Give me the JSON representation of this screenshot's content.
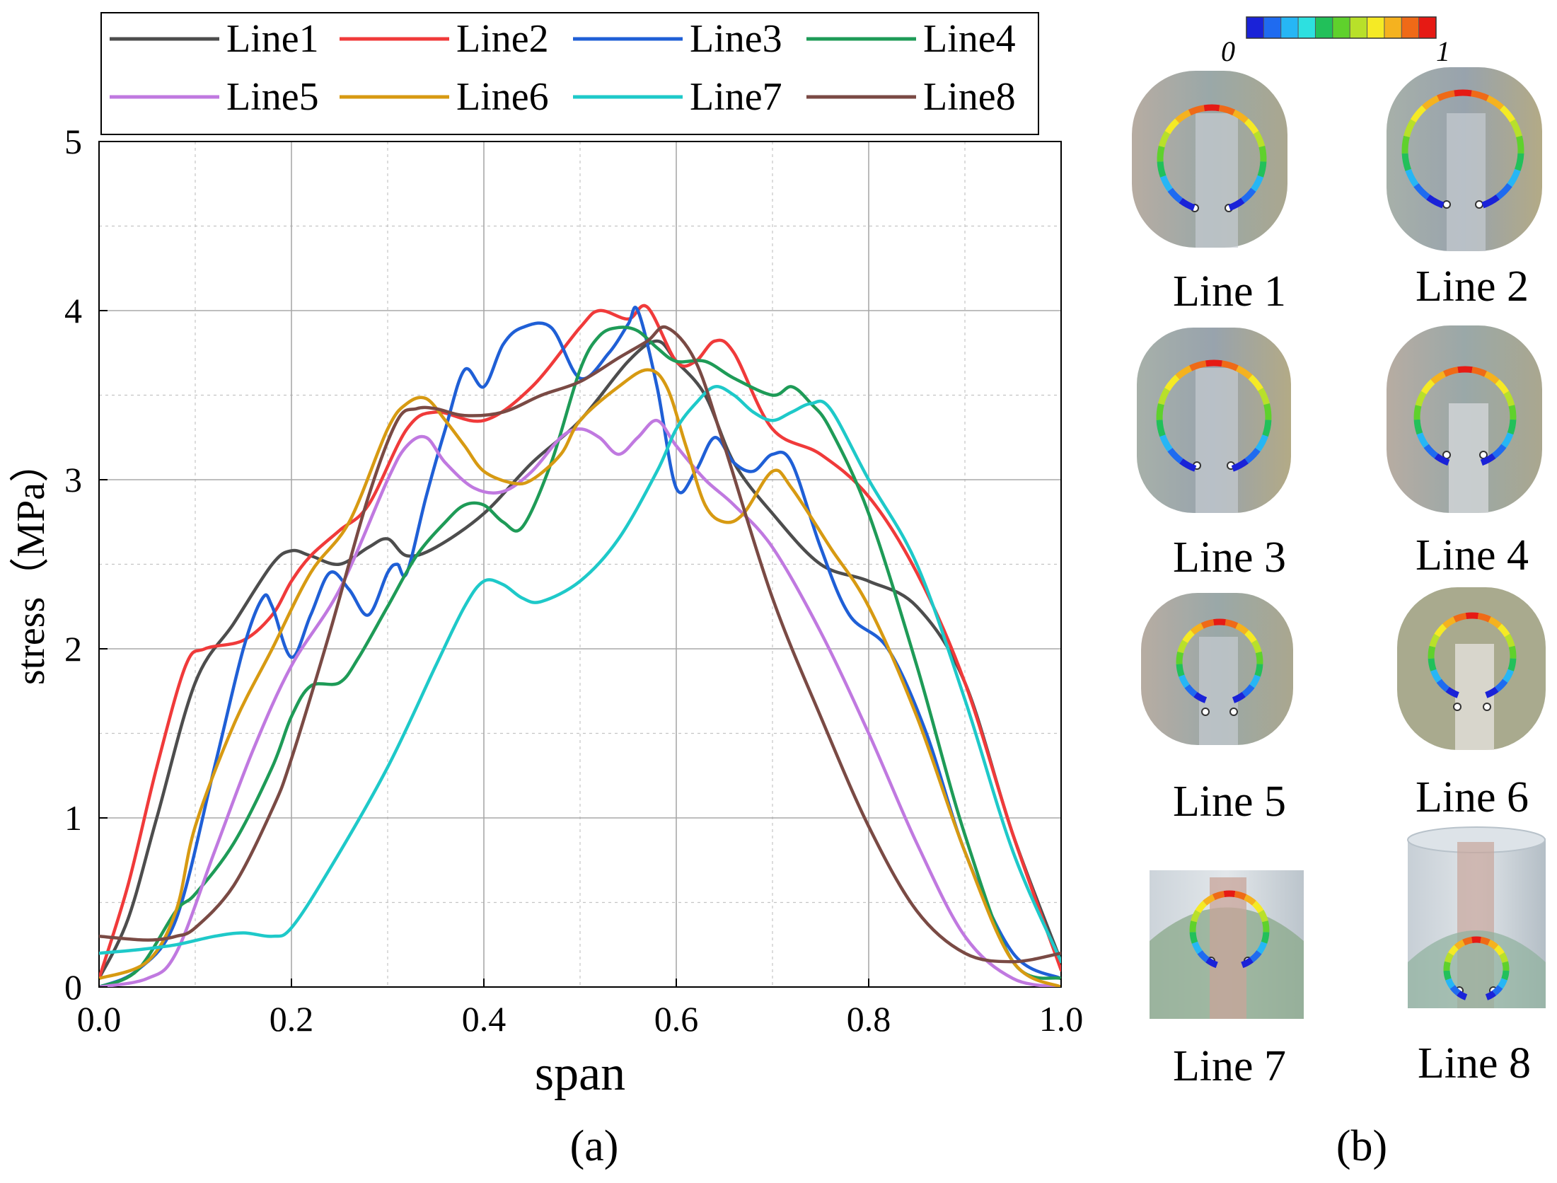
{
  "chart_data": {
    "type": "line",
    "xlabel": "span",
    "ylabel": "stress（MPa）",
    "xlim": [
      0.0,
      1.0
    ],
    "ylim": [
      0,
      5
    ],
    "xticks": [
      "0.0",
      "0.2",
      "0.4",
      "0.6",
      "0.8",
      "1.0"
    ],
    "yticks": [
      "0",
      "1",
      "2",
      "3",
      "4",
      "5"
    ],
    "grid": true,
    "legend_position": "top",
    "panel_caption": "(a)",
    "series": [
      {
        "name": "Line1",
        "color": "#4d4d4d",
        "x": [
          0,
          0.03,
          0.06,
          0.1,
          0.14,
          0.18,
          0.2,
          0.22,
          0.25,
          0.28,
          0.3,
          0.32,
          0.35,
          0.4,
          0.45,
          0.5,
          0.55,
          0.58,
          0.6,
          0.63,
          0.66,
          0.7,
          0.75,
          0.8,
          0.85,
          0.9,
          0.95,
          1.0
        ],
        "y": [
          0.05,
          0.4,
          1.0,
          1.8,
          2.15,
          2.5,
          2.58,
          2.55,
          2.5,
          2.6,
          2.65,
          2.55,
          2.6,
          2.8,
          3.1,
          3.35,
          3.7,
          3.82,
          3.7,
          3.5,
          3.1,
          2.8,
          2.5,
          2.4,
          2.25,
          1.8,
          0.9,
          0.15
        ]
      },
      {
        "name": "Line2",
        "color": "#f03a3a",
        "x": [
          0,
          0.03,
          0.06,
          0.09,
          0.11,
          0.15,
          0.18,
          0.2,
          0.22,
          0.25,
          0.28,
          0.32,
          0.35,
          0.4,
          0.45,
          0.5,
          0.52,
          0.55,
          0.57,
          0.6,
          0.62,
          0.64,
          0.66,
          0.7,
          0.75,
          0.8,
          0.85,
          0.9,
          0.95,
          1.0
        ],
        "y": [
          0.05,
          0.6,
          1.3,
          1.9,
          2.0,
          2.05,
          2.2,
          2.4,
          2.55,
          2.7,
          2.85,
          3.3,
          3.4,
          3.35,
          3.55,
          3.9,
          4.0,
          3.95,
          4.02,
          3.7,
          3.7,
          3.82,
          3.75,
          3.3,
          3.15,
          2.9,
          2.45,
          1.8,
          0.9,
          0.1
        ]
      },
      {
        "name": "Line3",
        "color": "#1f5fd6",
        "x": [
          0,
          0.04,
          0.08,
          0.12,
          0.15,
          0.17,
          0.18,
          0.2,
          0.22,
          0.24,
          0.26,
          0.28,
          0.3,
          0.31,
          0.32,
          0.34,
          0.36,
          0.38,
          0.4,
          0.42,
          0.44,
          0.47,
          0.5,
          0.53,
          0.55,
          0.56,
          0.58,
          0.6,
          0.62,
          0.64,
          0.66,
          0.68,
          0.7,
          0.72,
          0.75,
          0.78,
          0.82,
          0.86,
          0.9,
          0.95,
          1.0
        ],
        "y": [
          0.0,
          0.1,
          0.4,
          1.3,
          2.0,
          2.3,
          2.25,
          1.95,
          2.2,
          2.45,
          2.35,
          2.2,
          2.45,
          2.5,
          2.45,
          2.9,
          3.3,
          3.65,
          3.55,
          3.8,
          3.9,
          3.9,
          3.6,
          3.75,
          3.92,
          4.0,
          3.55,
          2.95,
          3.05,
          3.25,
          3.1,
          3.05,
          3.15,
          3.1,
          2.6,
          2.2,
          2.0,
          1.5,
          0.8,
          0.2,
          0.05
        ]
      },
      {
        "name": "Line4",
        "color": "#1e9b57",
        "x": [
          0,
          0.04,
          0.08,
          0.1,
          0.14,
          0.18,
          0.2,
          0.22,
          0.25,
          0.27,
          0.3,
          0.33,
          0.36,
          0.38,
          0.4,
          0.42,
          0.44,
          0.47,
          0.5,
          0.52,
          0.54,
          0.56,
          0.58,
          0.6,
          0.63,
          0.66,
          0.7,
          0.72,
          0.74,
          0.76,
          0.8,
          0.85,
          0.9,
          0.95,
          1.0
        ],
        "y": [
          0.0,
          0.1,
          0.45,
          0.55,
          0.85,
          1.3,
          1.6,
          1.78,
          1.8,
          1.95,
          2.25,
          2.55,
          2.75,
          2.85,
          2.85,
          2.75,
          2.72,
          3.1,
          3.65,
          3.85,
          3.9,
          3.88,
          3.78,
          3.7,
          3.7,
          3.6,
          3.5,
          3.55,
          3.45,
          3.3,
          2.8,
          1.9,
          0.9,
          0.15,
          0.05
        ]
      },
      {
        "name": "Line5",
        "color": "#c079e0",
        "x": [
          0,
          0.05,
          0.08,
          0.12,
          0.16,
          0.2,
          0.25,
          0.3,
          0.32,
          0.34,
          0.36,
          0.39,
          0.42,
          0.45,
          0.48,
          0.5,
          0.52,
          0.54,
          0.56,
          0.58,
          0.6,
          0.63,
          0.66,
          0.7,
          0.75,
          0.8,
          0.85,
          0.9,
          0.95,
          1.0
        ],
        "y": [
          0.0,
          0.05,
          0.2,
          0.8,
          1.4,
          1.9,
          2.35,
          3.0,
          3.2,
          3.25,
          3.1,
          2.95,
          2.93,
          3.05,
          3.25,
          3.3,
          3.25,
          3.15,
          3.25,
          3.35,
          3.2,
          3.0,
          2.85,
          2.6,
          2.1,
          1.5,
          0.85,
          0.3,
          0.05,
          0.0
        ]
      },
      {
        "name": "Line6",
        "color": "#d79a12",
        "x": [
          0,
          0.05,
          0.08,
          0.1,
          0.14,
          0.18,
          0.22,
          0.26,
          0.3,
          0.32,
          0.34,
          0.36,
          0.38,
          0.4,
          0.43,
          0.45,
          0.48,
          0.5,
          0.54,
          0.57,
          0.59,
          0.61,
          0.63,
          0.65,
          0.67,
          0.7,
          0.72,
          0.76,
          0.8,
          0.85,
          0.9,
          0.95,
          1.0
        ],
        "y": [
          0.05,
          0.15,
          0.45,
          0.95,
          1.55,
          2.0,
          2.45,
          2.75,
          3.3,
          3.45,
          3.48,
          3.35,
          3.2,
          3.05,
          2.98,
          3.0,
          3.15,
          3.35,
          3.55,
          3.65,
          3.55,
          3.2,
          2.85,
          2.75,
          2.8,
          3.05,
          2.95,
          2.6,
          2.25,
          1.6,
          0.8,
          0.15,
          0.0
        ]
      },
      {
        "name": "Line7",
        "color": "#1ec9c9",
        "x": [
          0,
          0.04,
          0.08,
          0.12,
          0.15,
          0.18,
          0.2,
          0.24,
          0.3,
          0.35,
          0.38,
          0.4,
          0.42,
          0.44,
          0.46,
          0.5,
          0.54,
          0.58,
          0.6,
          0.62,
          0.64,
          0.66,
          0.68,
          0.7,
          0.72,
          0.74,
          0.76,
          0.8,
          0.85,
          0.9,
          0.95,
          1.0
        ],
        "y": [
          0.2,
          0.22,
          0.25,
          0.3,
          0.32,
          0.3,
          0.35,
          0.7,
          1.3,
          1.9,
          2.25,
          2.4,
          2.38,
          2.3,
          2.28,
          2.4,
          2.65,
          3.05,
          3.3,
          3.45,
          3.55,
          3.5,
          3.4,
          3.35,
          3.4,
          3.45,
          3.42,
          3.0,
          2.5,
          1.7,
          0.8,
          0.15
        ]
      },
      {
        "name": "Line8",
        "color": "#7a4a44",
        "x": [
          0,
          0.04,
          0.06,
          0.08,
          0.1,
          0.14,
          0.18,
          0.2,
          0.24,
          0.28,
          0.31,
          0.33,
          0.35,
          0.38,
          0.42,
          0.46,
          0.5,
          0.54,
          0.57,
          0.59,
          0.62,
          0.65,
          0.7,
          0.75,
          0.8,
          0.85,
          0.9,
          0.95,
          1.0
        ],
        "y": [
          0.3,
          0.28,
          0.28,
          0.3,
          0.35,
          0.6,
          1.05,
          1.35,
          2.1,
          2.9,
          3.35,
          3.42,
          3.42,
          3.38,
          3.4,
          3.5,
          3.58,
          3.72,
          3.82,
          3.9,
          3.7,
          3.2,
          2.3,
          1.6,
          0.95,
          0.45,
          0.2,
          0.15,
          0.2
        ]
      }
    ]
  },
  "panel_b": {
    "caption": "(b)",
    "colorbar": {
      "min_label": "0",
      "max_label": "1",
      "colors": [
        "#1a22d8",
        "#1f6bf0",
        "#26b6f5",
        "#2de0e0",
        "#22c05a",
        "#5fd12c",
        "#b8e02a",
        "#f5ea25",
        "#f5b21f",
        "#ef6a17",
        "#e61a14"
      ]
    },
    "labels": [
      "Line 1",
      "Line 2",
      "Line 3",
      "Line 4",
      "Line 5",
      "Line 6",
      "Line 7",
      "Line 8"
    ]
  }
}
